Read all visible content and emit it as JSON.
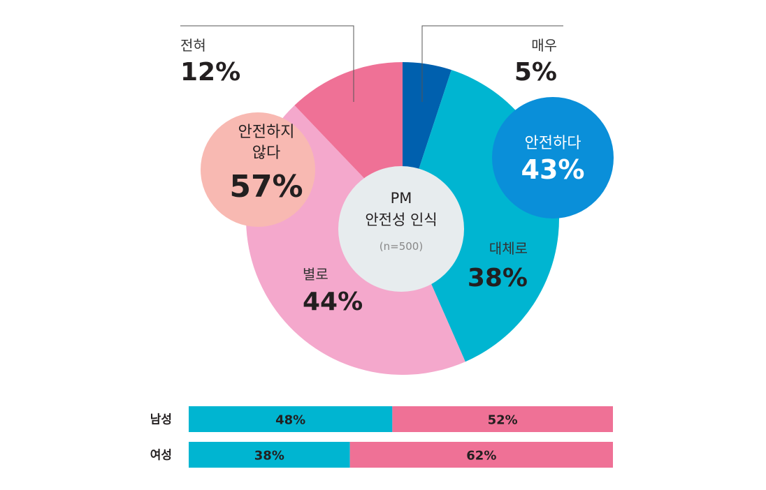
{
  "chart_data": [
    {
      "type": "pie",
      "title": "PM\n안전성 인식",
      "subtitle": "(n=500)",
      "slices": [
        {
          "label": "매우",
          "value": 5,
          "value_label": "5%",
          "color": "#0060ae"
        },
        {
          "label": "대체로",
          "value": 38,
          "value_label": "38%",
          "color": "#00b5d1"
        },
        {
          "label": "별로",
          "value": 44,
          "value_label": "44%",
          "color": "#f4a8cc"
        },
        {
          "label": "전혀",
          "value": 12,
          "value_label": "12%",
          "color": "#ef7196"
        }
      ],
      "groups": [
        {
          "label": "안전하다",
          "value_label": "43%",
          "color": "#0a8fd9"
        },
        {
          "label": "안전하지\n않다",
          "value_label": "57%",
          "color": "#f8b9b2"
        }
      ]
    },
    {
      "type": "bar",
      "orientation": "horizontal",
      "stacked": true,
      "categories": [
        "남성",
        "여성"
      ],
      "series": [
        {
          "values": [
            48,
            38
          ],
          "value_labels": [
            "48%",
            "38%"
          ],
          "color": "#00b5d1"
        },
        {
          "values": [
            52,
            62
          ],
          "value_labels": [
            "52%",
            "62%"
          ],
          "color": "#ef7196"
        }
      ]
    }
  ]
}
